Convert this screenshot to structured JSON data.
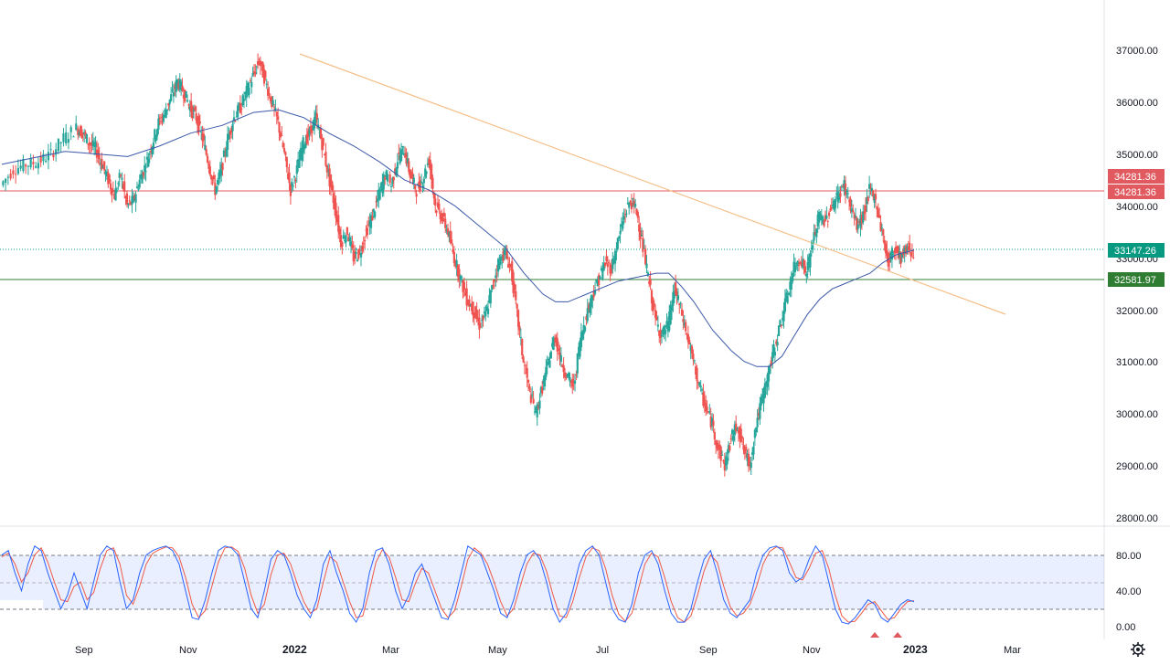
{
  "chart_data": [
    {
      "type": "candlestick",
      "ylim": [
        28000,
        37000
      ],
      "y_ticks": [
        "37000.00",
        "36000.00",
        "35000.00",
        "34000.00",
        "33000.00",
        "32000.00",
        "31000.00",
        "30000.00",
        "29000.00",
        "28000.00"
      ],
      "x_ticks": [
        "Sep",
        "Nov",
        "2022",
        "Mar",
        "May",
        "Jul",
        "Sep",
        "Nov",
        "2023",
        "Mar"
      ],
      "trendline": {
        "from": [
          "Jan 2022",
          36950
        ],
        "to": [
          "Mar 2023",
          31900
        ]
      },
      "levels": [
        {
          "label": "34281.36",
          "value": 34281.36,
          "color": "#e05a5f"
        },
        {
          "label": "33147.26",
          "value": 33147.26,
          "color": "#089981",
          "style": "dotted"
        },
        {
          "label": "32581.97",
          "value": 32581.97,
          "color": "#2e7d32"
        }
      ],
      "moving_average_color": "#3a58a8",
      "series": [
        {
          "name": "price",
          "points": [
            [
              0,
              34400
            ],
            [
              2,
              34700
            ],
            [
              4,
              34800
            ],
            [
              6,
              34850
            ],
            [
              8,
              35000
            ],
            [
              10,
              35300
            ],
            [
              12,
              35500
            ],
            [
              13,
              35400
            ],
            [
              14,
              35200
            ],
            [
              15,
              35100
            ],
            [
              16,
              34800
            ],
            [
              17,
              34500
            ],
            [
              18,
              34200
            ],
            [
              19,
              34600
            ],
            [
              20,
              34000
            ],
            [
              21,
              34100
            ],
            [
              22,
              34500
            ],
            [
              23,
              34800
            ],
            [
              24,
              35200
            ],
            [
              25,
              35600
            ],
            [
              26,
              35800
            ],
            [
              27,
              36100
            ],
            [
              28,
              36400
            ],
            [
              29,
              36200
            ],
            [
              30,
              35900
            ],
            [
              31,
              35700
            ],
            [
              32,
              35300
            ],
            [
              33,
              34800
            ],
            [
              34,
              34300
            ],
            [
              35,
              34700
            ],
            [
              36,
              35300
            ],
            [
              37,
              35700
            ],
            [
              38,
              35900
            ],
            [
              39,
              36200
            ],
            [
              40,
              36500
            ],
            [
              41,
              36800
            ],
            [
              42,
              36400
            ],
            [
              43,
              36000
            ],
            [
              44,
              35600
            ],
            [
              45,
              35000
            ],
            [
              46,
              34300
            ],
            [
              47,
              34700
            ],
            [
              48,
              35200
            ],
            [
              49,
              35400
            ],
            [
              50,
              35700
            ],
            [
              51,
              35200
            ],
            [
              52,
              34600
            ],
            [
              53,
              34000
            ],
            [
              54,
              33300
            ],
            [
              55,
              33500
            ],
            [
              56,
              33000
            ],
            [
              57,
              33100
            ],
            [
              58,
              33500
            ],
            [
              59,
              33800
            ],
            [
              60,
              34200
            ],
            [
              61,
              34600
            ],
            [
              62,
              34400
            ],
            [
              63,
              34900
            ],
            [
              64,
              35100
            ],
            [
              65,
              34600
            ],
            [
              66,
              34300
            ],
            [
              67,
              34500
            ],
            [
              68,
              34900
            ],
            [
              69,
              34000
            ],
            [
              70,
              33800
            ],
            [
              71,
              33500
            ],
            [
              72,
              33000
            ],
            [
              73,
              32600
            ],
            [
              74,
              32200
            ],
            [
              75,
              32000
            ],
            [
              76,
              31700
            ],
            [
              77,
              31900
            ],
            [
              78,
              32400
            ],
            [
              79,
              32900
            ],
            [
              80,
              33100
            ],
            [
              81,
              32800
            ],
            [
              82,
              31900
            ],
            [
              83,
              31000
            ],
            [
              84,
              30400
            ],
            [
              85,
              30000
            ],
            [
              86,
              30500
            ],
            [
              87,
              31000
            ],
            [
              88,
              31500
            ],
            [
              89,
              31000
            ],
            [
              90,
              30700
            ],
            [
              91,
              30500
            ],
            [
              92,
              31400
            ],
            [
              93,
              31900
            ],
            [
              94,
              32300
            ],
            [
              95,
              32600
            ],
            [
              96,
              32900
            ],
            [
              97,
              32800
            ],
            [
              98,
              33300
            ],
            [
              99,
              33800
            ],
            [
              100,
              34100
            ],
            [
              101,
              33900
            ],
            [
              102,
              33200
            ],
            [
              103,
              32500
            ],
            [
              104,
              31800
            ],
            [
              105,
              31500
            ],
            [
              106,
              31700
            ],
            [
              107,
              32400
            ],
            [
              108,
              32000
            ],
            [
              109,
              31500
            ],
            [
              110,
              31000
            ],
            [
              111,
              30500
            ],
            [
              112,
              30100
            ],
            [
              113,
              29800
            ],
            [
              114,
              29300
            ],
            [
              115,
              29000
            ],
            [
              116,
              29500
            ],
            [
              117,
              29800
            ],
            [
              118,
              29300
            ],
            [
              119,
              29000
            ],
            [
              120,
              29800
            ],
            [
              121,
              30300
            ],
            [
              122,
              30800
            ],
            [
              123,
              31300
            ],
            [
              124,
              31800
            ],
            [
              125,
              32300
            ],
            [
              126,
              32800
            ],
            [
              127,
              33000
            ],
            [
              128,
              32700
            ],
            [
              129,
              33300
            ],
            [
              130,
              33800
            ],
            [
              131,
              33700
            ],
            [
              132,
              34000
            ],
            [
              133,
              34200
            ],
            [
              134,
              34400
            ],
            [
              135,
              34000
            ],
            [
              136,
              33600
            ],
            [
              137,
              33800
            ],
            [
              138,
              34300
            ],
            [
              139,
              34100
            ],
            [
              140,
              33500
            ],
            [
              141,
              32900
            ],
            [
              142,
              33200
            ],
            [
              143,
              33000
            ],
            [
              144,
              33200
            ],
            [
              145,
              33100
            ]
          ]
        },
        {
          "name": "moving-average",
          "points": [
            [
              0,
              34800
            ],
            [
              10,
              35050
            ],
            [
              20,
              34950
            ],
            [
              25,
              35150
            ],
            [
              30,
              35400
            ],
            [
              35,
              35550
            ],
            [
              40,
              35800
            ],
            [
              44,
              35850
            ],
            [
              48,
              35700
            ],
            [
              52,
              35400
            ],
            [
              56,
              35150
            ],
            [
              60,
              34850
            ],
            [
              64,
              34500
            ],
            [
              68,
              34300
            ],
            [
              72,
              34000
            ],
            [
              76,
              33600
            ],
            [
              80,
              33200
            ],
            [
              83,
              32700
            ],
            [
              86,
              32300
            ],
            [
              88,
              32150
            ],
            [
              90,
              32150
            ],
            [
              94,
              32350
            ],
            [
              98,
              32550
            ],
            [
              102,
              32650
            ],
            [
              104,
              32700
            ],
            [
              106,
              32700
            ],
            [
              108,
              32450
            ],
            [
              110,
              32150
            ],
            [
              113,
              31600
            ],
            [
              116,
              31200
            ],
            [
              118,
              31000
            ],
            [
              120,
              30900
            ],
            [
              122,
              30900
            ],
            [
              124,
              31100
            ],
            [
              126,
              31500
            ],
            [
              128,
              31900
            ],
            [
              130,
              32200
            ],
            [
              132,
              32400
            ],
            [
              134,
              32500
            ],
            [
              136,
              32600
            ],
            [
              138,
              32700
            ],
            [
              140,
              32900
            ],
            [
              142,
              33050
            ],
            [
              145,
              33150
            ]
          ]
        }
      ]
    },
    {
      "type": "line",
      "name": "stochastic",
      "ylim": [
        0,
        100
      ],
      "y_ticks": [
        "80.00",
        "40.00",
        "0.00"
      ],
      "band": [
        20,
        80
      ],
      "series": [
        {
          "name": "%K",
          "color": "#2962ff",
          "values": [
            80,
            85,
            60,
            40,
            70,
            90,
            85,
            60,
            40,
            20,
            35,
            60,
            40,
            20,
            50,
            80,
            90,
            85,
            50,
            20,
            30,
            60,
            80,
            85,
            88,
            90,
            85,
            70,
            40,
            10,
            8,
            30,
            60,
            85,
            90,
            88,
            80,
            50,
            20,
            10,
            40,
            75,
            85,
            80,
            60,
            35,
            20,
            10,
            30,
            70,
            85,
            60,
            40,
            15,
            5,
            20,
            60,
            85,
            88,
            70,
            40,
            20,
            35,
            60,
            70,
            50,
            30,
            10,
            8,
            30,
            60,
            90,
            85,
            80,
            60,
            40,
            15,
            10,
            30,
            60,
            80,
            85,
            75,
            50,
            20,
            5,
            15,
            40,
            70,
            85,
            90,
            80,
            50,
            20,
            8,
            5,
            25,
            60,
            80,
            85,
            70,
            40,
            15,
            5,
            5,
            20,
            50,
            75,
            85,
            60,
            30,
            15,
            10,
            20,
            30,
            60,
            80,
            88,
            90,
            85,
            60,
            50,
            55,
            75,
            90,
            80,
            50,
            20,
            5,
            3,
            10,
            20,
            30,
            25,
            10,
            5,
            15,
            25,
            30,
            28
          ]
        },
        {
          "name": "%D",
          "color": "#f05945",
          "values": [
            78,
            82,
            70,
            50,
            60,
            80,
            88,
            72,
            50,
            30,
            28,
            45,
            50,
            30,
            38,
            65,
            85,
            88,
            70,
            35,
            25,
            45,
            70,
            82,
            86,
            89,
            88,
            78,
            55,
            25,
            10,
            18,
            45,
            72,
            88,
            89,
            84,
            65,
            35,
            15,
            25,
            58,
            80,
            82,
            70,
            48,
            28,
            15,
            20,
            50,
            78,
            72,
            50,
            28,
            10,
            12,
            40,
            72,
            86,
            78,
            55,
            30,
            28,
            48,
            65,
            60,
            40,
            20,
            10,
            18,
            45,
            75,
            88,
            82,
            70,
            50,
            28,
            12,
            20,
            45,
            70,
            82,
            80,
            62,
            35,
            12,
            10,
            28,
            55,
            78,
            88,
            85,
            65,
            35,
            14,
            6,
            15,
            42,
            70,
            82,
            78,
            55,
            28,
            10,
            5,
            12,
            35,
            62,
            80,
            72,
            45,
            22,
            12,
            15,
            25,
            45,
            70,
            84,
            89,
            88,
            72,
            55,
            52,
            65,
            82,
            85,
            65,
            35,
            12,
            5,
            6,
            15,
            25,
            28,
            18,
            8,
            10,
            20,
            28,
            29
          ]
        }
      ],
      "markers": [
        "triangle-up",
        "triangle-up"
      ]
    }
  ]
}
